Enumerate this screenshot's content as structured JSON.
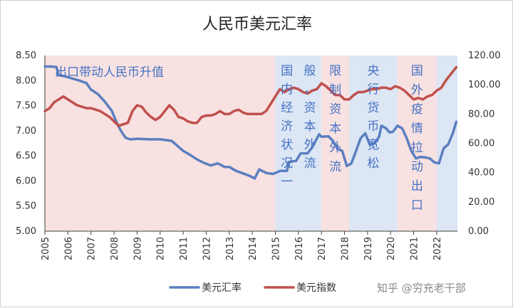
{
  "chart_data": {
    "type": "line",
    "title": "人民币美元汇率",
    "xlabel": "",
    "y_left_label": "",
    "y_right_label": "",
    "x_range": [
      2005.0,
      2022.9
    ],
    "ylim_left": [
      5.0,
      8.5
    ],
    "ylim_right": [
      0.0,
      120.0
    ],
    "y_left_ticks": [
      "5.00",
      "5.50",
      "6.00",
      "6.50",
      "7.00",
      "7.50",
      "8.00",
      "8.50"
    ],
    "y_right_ticks": [
      "0.00",
      "20.00",
      "40.00",
      "60.00",
      "80.00",
      "100.00",
      "120.00"
    ],
    "x_ticks": [
      "2005",
      "2006",
      "2007",
      "2008",
      "2009",
      "2010",
      "2011",
      "2012",
      "2013",
      "2014",
      "2015",
      "2016",
      "2017",
      "2018",
      "2019",
      "2020",
      "2021",
      "2022"
    ],
    "grid": false,
    "legend_position": "bottom",
    "periods": [
      {
        "start": 2005.0,
        "end": 2015.0,
        "color": "#f8e1e1",
        "label": "出口带动人民币升值",
        "orientation": "horizontal"
      },
      {
        "start": 2015.0,
        "end": 2017.0,
        "color": "#dce6f4",
        "label": "国内经济状况一般，资本外流",
        "orientation": "columns"
      },
      {
        "start": 2017.0,
        "end": 2018.2,
        "color": "#f8e1e1",
        "label": "限制资本外流",
        "orientation": "vertical"
      },
      {
        "start": 2018.2,
        "end": 2020.3,
        "color": "#dce6f4",
        "label": "央行货币宽松",
        "orientation": "columns"
      },
      {
        "start": 2020.3,
        "end": 2022.0,
        "color": "#f8e1e1",
        "label": "国外疫情拉动出口",
        "orientation": "vertical"
      },
      {
        "start": 2022.0,
        "end": 2022.9,
        "color": "#dce6f4",
        "label": "",
        "orientation": "none"
      }
    ],
    "series": [
      {
        "name": "美元汇率",
        "axis": "left",
        "color": "#5b7fbf",
        "points": [
          [
            2005.0,
            8.28
          ],
          [
            2005.25,
            8.28
          ],
          [
            2005.5,
            8.27
          ],
          [
            2005.6,
            8.11
          ],
          [
            2005.9,
            8.08
          ],
          [
            2006.2,
            8.04
          ],
          [
            2006.5,
            8.0
          ],
          [
            2006.8,
            7.95
          ],
          [
            2007.0,
            7.82
          ],
          [
            2007.3,
            7.73
          ],
          [
            2007.6,
            7.58
          ],
          [
            2007.9,
            7.4
          ],
          [
            2008.1,
            7.18
          ],
          [
            2008.3,
            7.0
          ],
          [
            2008.5,
            6.86
          ],
          [
            2008.7,
            6.83
          ],
          [
            2009.0,
            6.84
          ],
          [
            2009.5,
            6.83
          ],
          [
            2010.0,
            6.83
          ],
          [
            2010.5,
            6.8
          ],
          [
            2010.8,
            6.68
          ],
          [
            2011.0,
            6.6
          ],
          [
            2011.3,
            6.52
          ],
          [
            2011.6,
            6.43
          ],
          [
            2011.9,
            6.36
          ],
          [
            2012.2,
            6.31
          ],
          [
            2012.5,
            6.35
          ],
          [
            2012.8,
            6.28
          ],
          [
            2013.0,
            6.28
          ],
          [
            2013.3,
            6.2
          ],
          [
            2013.6,
            6.15
          ],
          [
            2013.9,
            6.1
          ],
          [
            2014.1,
            6.05
          ],
          [
            2014.3,
            6.23
          ],
          [
            2014.6,
            6.16
          ],
          [
            2014.9,
            6.14
          ],
          [
            2015.2,
            6.2
          ],
          [
            2015.5,
            6.2
          ],
          [
            2015.6,
            6.38
          ],
          [
            2015.9,
            6.4
          ],
          [
            2016.1,
            6.55
          ],
          [
            2016.4,
            6.55
          ],
          [
            2016.6,
            6.67
          ],
          [
            2016.9,
            6.93
          ],
          [
            2017.0,
            6.88
          ],
          [
            2017.3,
            6.89
          ],
          [
            2017.5,
            6.8
          ],
          [
            2017.7,
            6.64
          ],
          [
            2017.9,
            6.6
          ],
          [
            2018.1,
            6.3
          ],
          [
            2018.3,
            6.35
          ],
          [
            2018.5,
            6.6
          ],
          [
            2018.7,
            6.85
          ],
          [
            2018.9,
            6.95
          ],
          [
            2019.1,
            6.72
          ],
          [
            2019.3,
            6.75
          ],
          [
            2019.5,
            6.88
          ],
          [
            2019.6,
            7.1
          ],
          [
            2019.8,
            7.05
          ],
          [
            2019.95,
            6.97
          ],
          [
            2020.1,
            6.98
          ],
          [
            2020.3,
            7.1
          ],
          [
            2020.5,
            7.05
          ],
          [
            2020.7,
            6.85
          ],
          [
            2020.9,
            6.6
          ],
          [
            2021.1,
            6.45
          ],
          [
            2021.3,
            6.48
          ],
          [
            2021.5,
            6.47
          ],
          [
            2021.7,
            6.45
          ],
          [
            2021.9,
            6.37
          ],
          [
            2022.1,
            6.35
          ],
          [
            2022.3,
            6.65
          ],
          [
            2022.5,
            6.73
          ],
          [
            2022.7,
            6.95
          ],
          [
            2022.85,
            7.18
          ]
        ]
      },
      {
        "name": "美元指数",
        "axis": "right",
        "color": "#c0504d",
        "points": [
          [
            2005.0,
            82
          ],
          [
            2005.2,
            84
          ],
          [
            2005.4,
            88
          ],
          [
            2005.6,
            90
          ],
          [
            2005.8,
            92
          ],
          [
            2006.0,
            90
          ],
          [
            2006.2,
            88
          ],
          [
            2006.4,
            86
          ],
          [
            2006.6,
            85
          ],
          [
            2006.8,
            84
          ],
          [
            2007.0,
            84
          ],
          [
            2007.2,
            83
          ],
          [
            2007.4,
            82
          ],
          [
            2007.6,
            80
          ],
          [
            2007.8,
            78
          ],
          [
            2008.0,
            75
          ],
          [
            2008.2,
            72
          ],
          [
            2008.4,
            73
          ],
          [
            2008.6,
            74
          ],
          [
            2008.8,
            82
          ],
          [
            2009.0,
            86
          ],
          [
            2009.2,
            85
          ],
          [
            2009.4,
            81
          ],
          [
            2009.6,
            78
          ],
          [
            2009.8,
            76
          ],
          [
            2010.0,
            78
          ],
          [
            2010.2,
            82
          ],
          [
            2010.4,
            86
          ],
          [
            2010.6,
            83
          ],
          [
            2010.8,
            78
          ],
          [
            2011.0,
            77
          ],
          [
            2011.2,
            75
          ],
          [
            2011.4,
            74
          ],
          [
            2011.6,
            74
          ],
          [
            2011.8,
            78
          ],
          [
            2012.0,
            79
          ],
          [
            2012.2,
            79
          ],
          [
            2012.4,
            80
          ],
          [
            2012.6,
            82
          ],
          [
            2012.8,
            80
          ],
          [
            2013.0,
            80
          ],
          [
            2013.2,
            82
          ],
          [
            2013.4,
            83
          ],
          [
            2013.6,
            81
          ],
          [
            2013.8,
            80
          ],
          [
            2014.0,
            80
          ],
          [
            2014.2,
            80
          ],
          [
            2014.4,
            80
          ],
          [
            2014.6,
            82
          ],
          [
            2014.8,
            87
          ],
          [
            2015.0,
            92
          ],
          [
            2015.2,
            97
          ],
          [
            2015.4,
            95
          ],
          [
            2015.6,
            97
          ],
          [
            2015.8,
            98
          ],
          [
            2016.0,
            97
          ],
          [
            2016.2,
            95
          ],
          [
            2016.4,
            94
          ],
          [
            2016.6,
            96
          ],
          [
            2016.8,
            97
          ],
          [
            2017.0,
            101
          ],
          [
            2017.2,
            99
          ],
          [
            2017.4,
            96
          ],
          [
            2017.6,
            93
          ],
          [
            2017.8,
            93
          ],
          [
            2018.0,
            90
          ],
          [
            2018.2,
            90
          ],
          [
            2018.4,
            93
          ],
          [
            2018.6,
            95
          ],
          [
            2018.8,
            95
          ],
          [
            2019.0,
            96
          ],
          [
            2019.2,
            97
          ],
          [
            2019.4,
            97
          ],
          [
            2019.6,
            98
          ],
          [
            2019.8,
            98
          ],
          [
            2020.0,
            97
          ],
          [
            2020.2,
            99
          ],
          [
            2020.4,
            98
          ],
          [
            2020.6,
            96
          ],
          [
            2020.8,
            93
          ],
          [
            2021.0,
            90
          ],
          [
            2021.2,
            91
          ],
          [
            2021.4,
            90
          ],
          [
            2021.6,
            92
          ],
          [
            2021.8,
            93
          ],
          [
            2022.0,
            96
          ],
          [
            2022.2,
            98
          ],
          [
            2022.4,
            103
          ],
          [
            2022.6,
            107
          ],
          [
            2022.75,
            110
          ],
          [
            2022.85,
            112
          ]
        ]
      }
    ]
  },
  "watermark": "知乎 @穷充老干部"
}
